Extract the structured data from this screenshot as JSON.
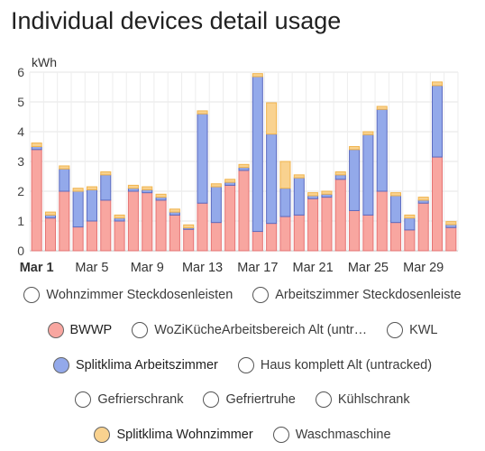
{
  "title": "Individual devices detail usage",
  "chart_data": {
    "type": "bar",
    "stacked": true,
    "y_unit": "kWh",
    "ylim": [
      0,
      6
    ],
    "yticks": [
      0,
      1,
      2,
      3,
      4,
      5,
      6
    ],
    "grid": true,
    "categories": [
      "Mar 1",
      "Mar 2",
      "Mar 3",
      "Mar 4",
      "Mar 5",
      "Mar 6",
      "Mar 7",
      "Mar 8",
      "Mar 9",
      "Mar 10",
      "Mar 11",
      "Mar 12",
      "Mar 13",
      "Mar 14",
      "Mar 15",
      "Mar 16",
      "Mar 17",
      "Mar 18",
      "Mar 19",
      "Mar 20",
      "Mar 21",
      "Mar 22",
      "Mar 23",
      "Mar 24",
      "Mar 25",
      "Mar 26",
      "Mar 27",
      "Mar 28",
      "Mar 29",
      "Mar 30",
      "Mar 31"
    ],
    "xtick_labels": [
      {
        "index": 0,
        "label": "Mar 1",
        "bold": true
      },
      {
        "index": 4,
        "label": "Mar 5"
      },
      {
        "index": 8,
        "label": "Mar 9"
      },
      {
        "index": 12,
        "label": "Mar 13"
      },
      {
        "index": 16,
        "label": "Mar 17"
      },
      {
        "index": 20,
        "label": "Mar 21"
      },
      {
        "index": 24,
        "label": "Mar 25"
      },
      {
        "index": 28,
        "label": "Mar 29"
      }
    ],
    "series": [
      {
        "name": "BWWP",
        "color": "#f8a6a0",
        "border": "#e57373",
        "values": [
          3.4,
          1.1,
          2.0,
          0.8,
          1.0,
          1.7,
          1.0,
          2.0,
          1.95,
          1.7,
          1.2,
          0.72,
          1.6,
          0.95,
          2.2,
          2.7,
          0.65,
          0.92,
          1.15,
          1.2,
          1.75,
          1.8,
          2.4,
          1.35,
          1.2,
          2.0,
          0.95,
          0.7,
          1.6,
          3.15,
          0.78
        ]
      },
      {
        "name": "Splitklima Arbeitszimmer",
        "color": "#93a9ea",
        "border": "#5c6bc0",
        "values": [
          0.1,
          0.1,
          0.75,
          1.2,
          1.05,
          0.85,
          0.1,
          0.1,
          0.1,
          0.1,
          0.1,
          0.05,
          3.0,
          1.2,
          0.1,
          0.1,
          5.2,
          3.0,
          0.95,
          1.25,
          0.1,
          0.1,
          0.15,
          2.05,
          2.7,
          2.75,
          0.9,
          0.4,
          0.1,
          2.4,
          0.1
        ]
      },
      {
        "name": "Splitklima Wohnzimmer",
        "color": "#f9d28f",
        "border": "#f0b44e",
        "values": [
          0.12,
          0.1,
          0.1,
          0.1,
          0.1,
          0.1,
          0.1,
          0.1,
          0.1,
          0.1,
          0.1,
          0.1,
          0.1,
          0.1,
          0.1,
          0.1,
          0.1,
          1.05,
          0.9,
          0.1,
          0.1,
          0.1,
          0.1,
          0.1,
          0.1,
          0.1,
          0.1,
          0.1,
          0.1,
          0.12,
          0.1
        ]
      }
    ]
  },
  "legend": {
    "rows": [
      [
        {
          "label": "Wohnzimmer Steckdosenleisten",
          "active": false
        },
        {
          "label": "Arbeitszimmer Steckdosenleiste",
          "active": false
        }
      ],
      [
        {
          "label": "BWWP",
          "active": true,
          "color": "#f8a6a0"
        },
        {
          "label": "WoZiKücheArbeitsbereich Alt (untr…",
          "active": false
        },
        {
          "label": "KWL",
          "active": false
        }
      ],
      [
        {
          "label": "Splitklima Arbeitszimmer",
          "active": true,
          "color": "#93a9ea"
        },
        {
          "label": "Haus komplett Alt (untracked)",
          "active": false
        }
      ],
      [
        {
          "label": "Gefrierschrank",
          "active": false
        },
        {
          "label": "Gefriertruhe",
          "active": false
        },
        {
          "label": "Kühlschrank",
          "active": false
        }
      ],
      [
        {
          "label": "Splitklima Wohnzimmer",
          "active": true,
          "color": "#f9d28f"
        },
        {
          "label": "Waschmaschine",
          "active": false
        }
      ]
    ]
  }
}
